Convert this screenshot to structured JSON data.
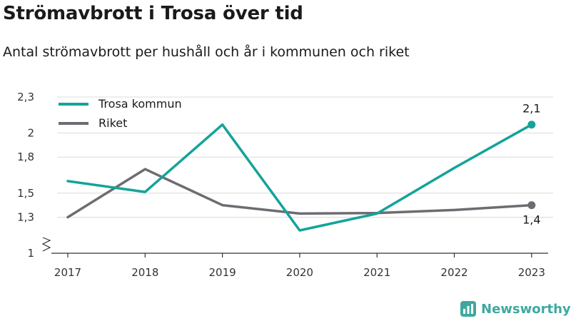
{
  "title": "Strömavbrott i Trosa över tid",
  "subtitle": "Antal strömavbrott per hushåll och år i kommunen och riket",
  "brand": {
    "name": "Newsworthy",
    "icon": "bar-chart-icon",
    "color": "#3fa89e"
  },
  "colors": {
    "trosa": "#14a39a",
    "riket": "#6d6c72",
    "grid": "#dcdcdc",
    "axis": "#333333"
  },
  "chart_data": {
    "type": "line",
    "title": "Strömavbrott i Trosa över tid",
    "subtitle": "Antal strömavbrott per hushåll och år i kommunen och riket",
    "xlabel": "",
    "ylabel": "",
    "categories": [
      "2017",
      "2018",
      "2019",
      "2020",
      "2021",
      "2022",
      "2023"
    ],
    "ylim": [
      1,
      2.3
    ],
    "axis_break": true,
    "grid": true,
    "legend_position": "top-left",
    "yticks": [
      1,
      1.3,
      1.5,
      1.8,
      2,
      2.3
    ],
    "ytick_labels": [
      "1",
      "1,3",
      "1,5",
      "1,8",
      "2",
      "2,3"
    ],
    "series": [
      {
        "name": "Trosa kommun",
        "color": "#14a39a",
        "values": [
          1.6,
          1.51,
          2.07,
          1.19,
          1.33,
          1.71,
          2.07
        ],
        "end_label": "2,1",
        "end_label_position": "above"
      },
      {
        "name": "Riket",
        "color": "#6d6c72",
        "values": [
          1.3,
          1.7,
          1.4,
          1.33,
          1.335,
          1.36,
          1.4
        ],
        "end_label": "1,4",
        "end_label_position": "below"
      }
    ]
  }
}
